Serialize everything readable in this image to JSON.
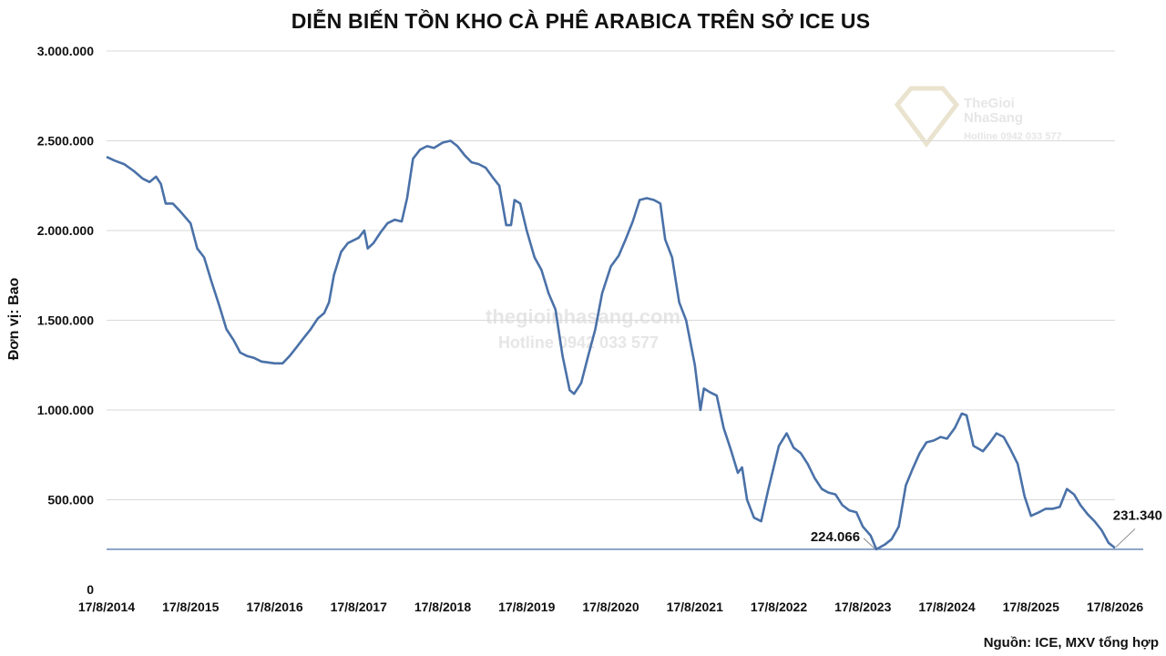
{
  "colors": {
    "series": "#4a71a8",
    "grid": "#d9d9d9",
    "reference_line": "#4a71a8",
    "watermark": "#e6e6e6"
  },
  "watermark": {
    "site": "thegioinhasang.com",
    "hotline": "Hotline 0942 033 577",
    "brand_line1": "TheGioi",
    "brand_line2": "NhaSang",
    "brand_hotline": "Hotline 0942 033 577"
  },
  "chart_data": {
    "type": "line",
    "title": "DIỄN BIẾN TỒN KHO CÀ PHÊ ARABICA TRÊN SỞ ICE US",
    "ylabel": "Đơn vị: Bao",
    "source": "Nguồn: ICE, MXV tổng hợp",
    "ylim": [
      0,
      3000000
    ],
    "xlim": [
      "2014-08-17",
      "2026-08-17"
    ],
    "grid": true,
    "legend": "none",
    "y_ticks": [
      "0",
      "500.000",
      "1.000.000",
      "1.500.000",
      "2.000.000",
      "2.500.000",
      "3.000.000"
    ],
    "x_ticks": [
      "17/8/2014",
      "17/8/2015",
      "17/8/2016",
      "17/8/2017",
      "17/8/2018",
      "17/8/2019",
      "17/8/2020",
      "17/8/2021",
      "17/8/2022",
      "17/8/2023",
      "17/8/2024",
      "17/8/2025",
      "17/8/2026"
    ],
    "reference_line_value": 224066,
    "annotations": [
      {
        "label": "224.066",
        "x": "2023-10-15",
        "y": 224066
      },
      {
        "label": "231.340",
        "x": "2026-08-17",
        "y": 231340
      }
    ],
    "series": [
      {
        "points": [
          [
            "2014-08-17",
            2410000
          ],
          [
            "2014-09-20",
            2390000
          ],
          [
            "2014-11-01",
            2370000
          ],
          [
            "2014-12-15",
            2330000
          ],
          [
            "2015-01-20",
            2290000
          ],
          [
            "2015-02-20",
            2270000
          ],
          [
            "2015-03-20",
            2300000
          ],
          [
            "2015-04-10",
            2260000
          ],
          [
            "2015-05-01",
            2150000
          ],
          [
            "2015-06-01",
            2150000
          ],
          [
            "2015-07-01",
            2110000
          ],
          [
            "2015-08-17",
            2040000
          ],
          [
            "2015-09-15",
            1900000
          ],
          [
            "2015-10-15",
            1850000
          ],
          [
            "2015-11-15",
            1720000
          ],
          [
            "2015-12-20",
            1580000
          ],
          [
            "2016-01-20",
            1450000
          ],
          [
            "2016-02-20",
            1390000
          ],
          [
            "2016-03-20",
            1320000
          ],
          [
            "2016-04-20",
            1300000
          ],
          [
            "2016-05-20",
            1290000
          ],
          [
            "2016-06-20",
            1270000
          ],
          [
            "2016-08-17",
            1260000
          ],
          [
            "2016-09-20",
            1260000
          ],
          [
            "2016-10-20",
            1300000
          ],
          [
            "2016-11-20",
            1350000
          ],
          [
            "2016-12-20",
            1400000
          ],
          [
            "2017-01-20",
            1450000
          ],
          [
            "2017-02-20",
            1510000
          ],
          [
            "2017-03-20",
            1540000
          ],
          [
            "2017-04-10",
            1600000
          ],
          [
            "2017-05-01",
            1750000
          ],
          [
            "2017-06-01",
            1880000
          ],
          [
            "2017-07-01",
            1930000
          ],
          [
            "2017-08-17",
            1960000
          ],
          [
            "2017-09-10",
            2000000
          ],
          [
            "2017-09-25",
            1900000
          ],
          [
            "2017-10-20",
            1930000
          ],
          [
            "2017-11-20",
            1990000
          ],
          [
            "2017-12-20",
            2040000
          ],
          [
            "2018-01-20",
            2060000
          ],
          [
            "2018-02-20",
            2050000
          ],
          [
            "2018-03-15",
            2180000
          ],
          [
            "2018-04-10",
            2400000
          ],
          [
            "2018-05-10",
            2450000
          ],
          [
            "2018-06-10",
            2470000
          ],
          [
            "2018-07-10",
            2460000
          ],
          [
            "2018-08-17",
            2490000
          ],
          [
            "2018-09-20",
            2500000
          ],
          [
            "2018-10-20",
            2470000
          ],
          [
            "2018-11-20",
            2420000
          ],
          [
            "2018-12-20",
            2380000
          ],
          [
            "2019-01-20",
            2370000
          ],
          [
            "2019-02-20",
            2350000
          ],
          [
            "2019-03-20",
            2300000
          ],
          [
            "2019-04-20",
            2250000
          ],
          [
            "2019-05-20",
            2030000
          ],
          [
            "2019-06-10",
            2030000
          ],
          [
            "2019-06-25",
            2170000
          ],
          [
            "2019-07-20",
            2150000
          ],
          [
            "2019-08-17",
            2000000
          ],
          [
            "2019-09-20",
            1850000
          ],
          [
            "2019-10-20",
            1780000
          ],
          [
            "2019-11-20",
            1650000
          ],
          [
            "2019-12-20",
            1560000
          ],
          [
            "2020-01-20",
            1300000
          ],
          [
            "2020-02-20",
            1110000
          ],
          [
            "2020-03-10",
            1090000
          ],
          [
            "2020-04-10",
            1150000
          ],
          [
            "2020-05-10",
            1300000
          ],
          [
            "2020-06-10",
            1450000
          ],
          [
            "2020-07-10",
            1650000
          ],
          [
            "2020-08-17",
            1800000
          ],
          [
            "2020-09-20",
            1860000
          ],
          [
            "2020-10-20",
            1950000
          ],
          [
            "2020-11-20",
            2050000
          ],
          [
            "2020-12-20",
            2170000
          ],
          [
            "2021-01-20",
            2180000
          ],
          [
            "2021-02-20",
            2170000
          ],
          [
            "2021-03-20",
            2150000
          ],
          [
            "2021-04-10",
            1950000
          ],
          [
            "2021-05-10",
            1850000
          ],
          [
            "2021-06-10",
            1600000
          ],
          [
            "2021-07-10",
            1500000
          ],
          [
            "2021-08-17",
            1250000
          ],
          [
            "2021-09-10",
            1000000
          ],
          [
            "2021-09-25",
            1120000
          ],
          [
            "2021-10-20",
            1100000
          ],
          [
            "2021-11-20",
            1080000
          ],
          [
            "2021-12-20",
            900000
          ],
          [
            "2022-01-20",
            780000
          ],
          [
            "2022-02-20",
            650000
          ],
          [
            "2022-03-10",
            680000
          ],
          [
            "2022-04-01",
            500000
          ],
          [
            "2022-05-01",
            400000
          ],
          [
            "2022-06-01",
            380000
          ],
          [
            "2022-07-01",
            550000
          ],
          [
            "2022-08-17",
            800000
          ],
          [
            "2022-09-20",
            870000
          ],
          [
            "2022-10-20",
            790000
          ],
          [
            "2022-11-20",
            760000
          ],
          [
            "2022-12-20",
            700000
          ],
          [
            "2023-01-20",
            620000
          ],
          [
            "2023-02-20",
            560000
          ],
          [
            "2023-03-20",
            540000
          ],
          [
            "2023-04-20",
            530000
          ],
          [
            "2023-05-20",
            470000
          ],
          [
            "2023-06-20",
            440000
          ],
          [
            "2023-07-20",
            430000
          ],
          [
            "2023-08-17",
            350000
          ],
          [
            "2023-09-20",
            300000
          ],
          [
            "2023-10-15",
            224066
          ],
          [
            "2023-11-20",
            250000
          ],
          [
            "2023-12-20",
            280000
          ],
          [
            "2024-01-20",
            350000
          ],
          [
            "2024-02-20",
            580000
          ],
          [
            "2024-03-20",
            670000
          ],
          [
            "2024-04-20",
            760000
          ],
          [
            "2024-05-20",
            820000
          ],
          [
            "2024-06-20",
            830000
          ],
          [
            "2024-07-20",
            850000
          ],
          [
            "2024-08-17",
            840000
          ],
          [
            "2024-09-20",
            900000
          ],
          [
            "2024-10-20",
            980000
          ],
          [
            "2024-11-10",
            970000
          ],
          [
            "2024-12-10",
            800000
          ],
          [
            "2025-01-20",
            770000
          ],
          [
            "2025-02-20",
            820000
          ],
          [
            "2025-03-20",
            870000
          ],
          [
            "2025-04-20",
            850000
          ],
          [
            "2025-05-20",
            780000
          ],
          [
            "2025-06-20",
            700000
          ],
          [
            "2025-07-20",
            520000
          ],
          [
            "2025-08-17",
            410000
          ],
          [
            "2025-09-20",
            430000
          ],
          [
            "2025-10-20",
            450000
          ],
          [
            "2025-11-20",
            450000
          ],
          [
            "2025-12-20",
            460000
          ],
          [
            "2026-01-20",
            560000
          ],
          [
            "2026-02-20",
            530000
          ],
          [
            "2026-03-20",
            470000
          ],
          [
            "2026-04-20",
            420000
          ],
          [
            "2026-05-20",
            380000
          ],
          [
            "2026-06-20",
            330000
          ],
          [
            "2026-07-20",
            260000
          ],
          [
            "2026-08-17",
            231340
          ]
        ]
      }
    ]
  }
}
